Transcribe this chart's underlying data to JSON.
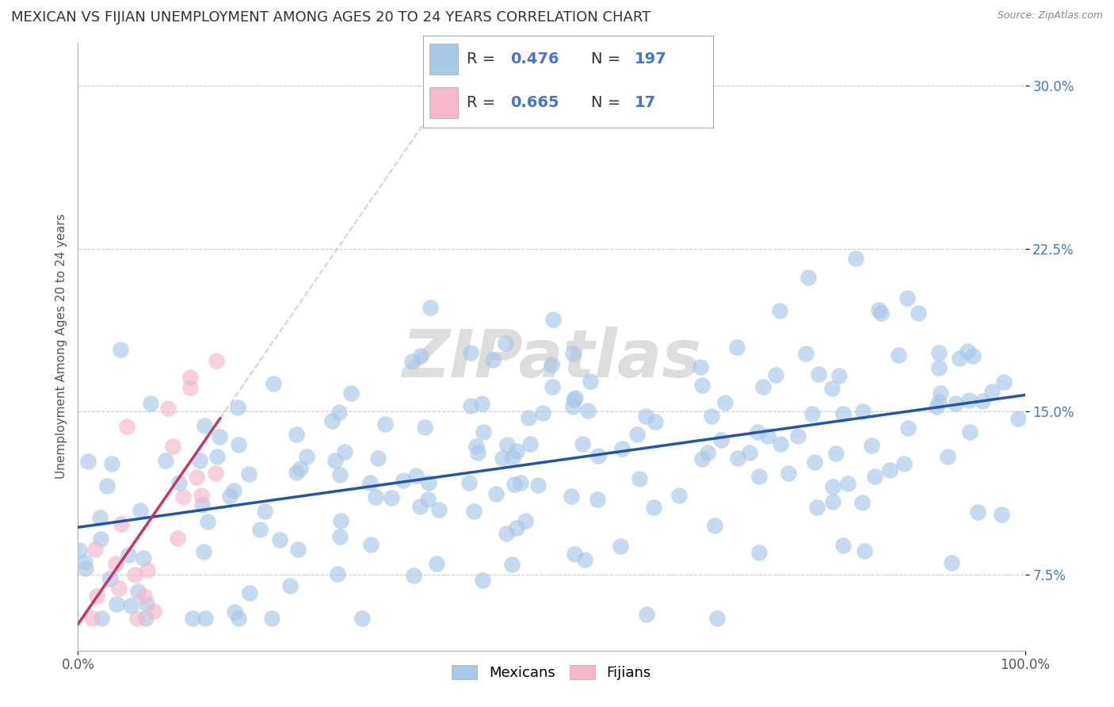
{
  "title": "MEXICAN VS FIJIAN UNEMPLOYMENT AMONG AGES 20 TO 24 YEARS CORRELATION CHART",
  "source": "Source: ZipAtlas.com",
  "ylabel": "Unemployment Among Ages 20 to 24 years",
  "xlim": [
    0.0,
    1.0
  ],
  "ylim": [
    0.04,
    0.32
  ],
  "yticks": [
    0.075,
    0.15,
    0.225,
    0.3
  ],
  "ytick_labels": [
    "7.5%",
    "15.0%",
    "22.5%",
    "30.0%"
  ],
  "xticks": [
    0.0,
    1.0
  ],
  "xtick_labels": [
    "0.0%",
    "100.0%"
  ],
  "mexican_R": 0.476,
  "mexican_N": 197,
  "fijian_R": 0.665,
  "fijian_N": 17,
  "mexican_color": "#a8c8e8",
  "fijian_color": "#f4b8c8",
  "mexican_line_color": "#2255aa",
  "fijian_line_color": "#cc3366",
  "fijian_dash_color": "#e8a0b8",
  "background_color": "#ffffff",
  "grid_color": "#cccccc",
  "stat_label_color": "#4477cc",
  "stat_n_color": "#cc3333",
  "watermark_color": "#dddddd",
  "title_fontsize": 13,
  "label_fontsize": 11,
  "tick_fontsize": 12,
  "legend_stat_fontsize": 14
}
